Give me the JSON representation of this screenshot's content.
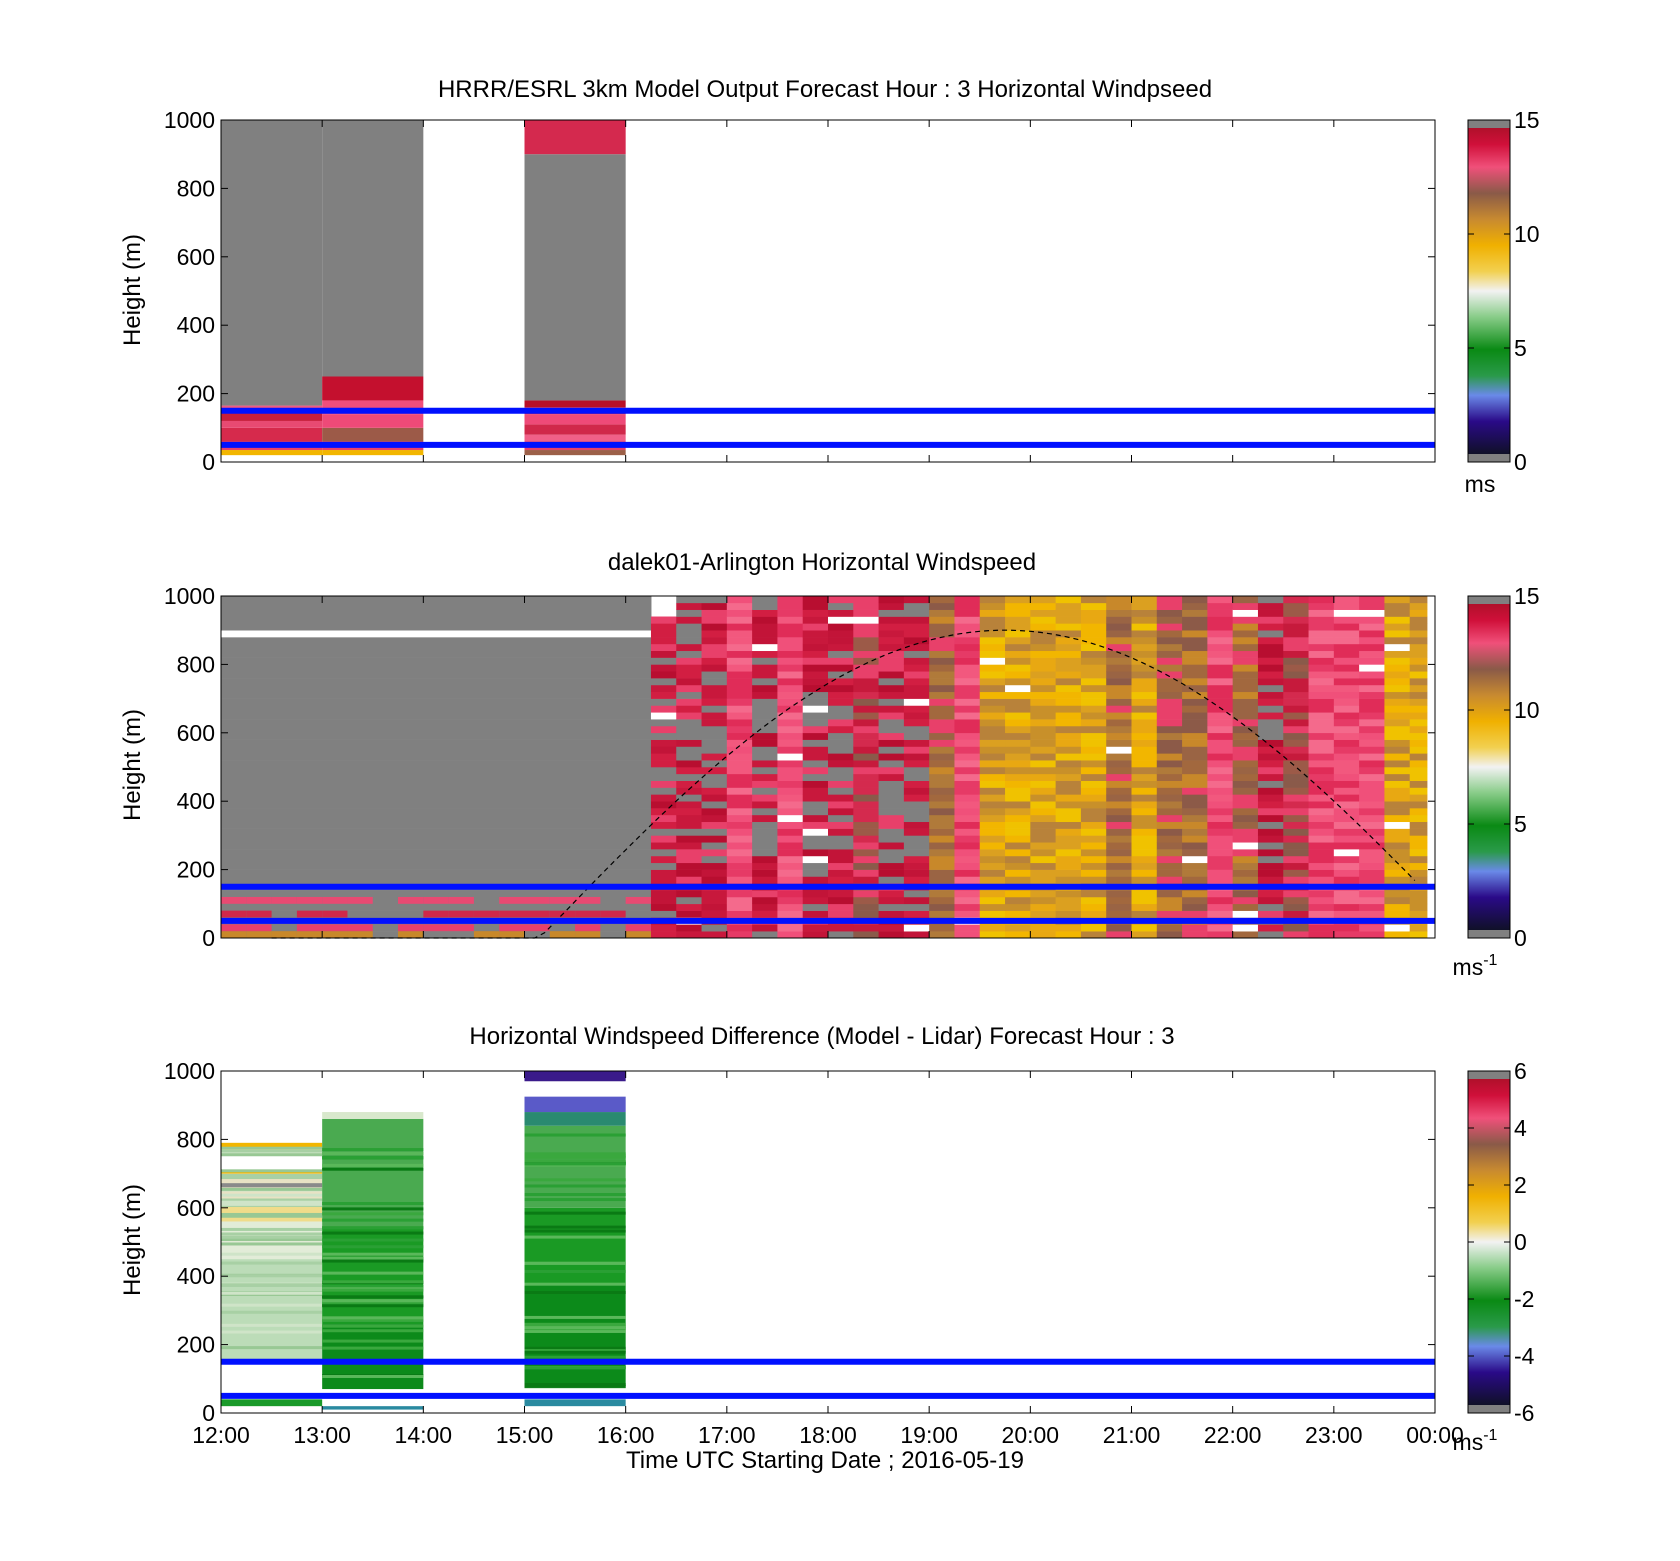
{
  "chart_data": [
    {
      "type": "heatmap",
      "title": "HRRR/ESRL 3km Model Output   Forecast Hour : 3 Horizontal Windpseed",
      "ylabel": "Height (m)",
      "xlim_hours": [
        12,
        24
      ],
      "ylim": [
        0,
        1000
      ],
      "yticks": [
        0,
        200,
        400,
        600,
        800,
        1000
      ],
      "colorbar": {
        "min": 0,
        "max": 15,
        "ticks": [
          0,
          5,
          10,
          15
        ],
        "unit": "ms",
        "unit_sup": ""
      },
      "reference_lines_m": [
        50,
        150
      ],
      "columns": [
        {
          "t0": 12,
          "t1": 13,
          "bands": [
            {
              "y0": 20,
              "y1": 35,
              "c": "#f2b600"
            },
            {
              "y0": 35,
              "y1": 60,
              "c": "#e8406a"
            },
            {
              "y0": 60,
              "y1": 100,
              "c": "#d62a4c"
            },
            {
              "y0": 100,
              "y1": 120,
              "c": "#e84a72"
            },
            {
              "y0": 120,
              "y1": 145,
              "c": "#c81e3c"
            },
            {
              "y0": 145,
              "y1": 165,
              "c": "#ee5a82"
            },
            {
              "y0": 165,
              "y1": 1000,
              "c": "#808080"
            }
          ]
        },
        {
          "t0": 13,
          "t1": 14,
          "bands": [
            {
              "y0": 20,
              "y1": 35,
              "c": "#f2b600"
            },
            {
              "y0": 35,
              "y1": 60,
              "c": "#e8406a"
            },
            {
              "y0": 60,
              "y1": 100,
              "c": "#9c5a48"
            },
            {
              "y0": 100,
              "y1": 140,
              "c": "#ee4a78"
            },
            {
              "y0": 140,
              "y1": 180,
              "c": "#f04e7c"
            },
            {
              "y0": 180,
              "y1": 250,
              "c": "#c4102e"
            },
            {
              "y0": 250,
              "y1": 1000,
              "c": "#808080"
            }
          ]
        },
        {
          "t0": 15,
          "t1": 16,
          "bands": [
            {
              "y0": 20,
              "y1": 35,
              "c": "#9c6048"
            },
            {
              "y0": 35,
              "y1": 60,
              "c": "#e8406a"
            },
            {
              "y0": 60,
              "y1": 80,
              "c": "#f06088"
            },
            {
              "y0": 80,
              "y1": 110,
              "c": "#d0284a"
            },
            {
              "y0": 110,
              "y1": 140,
              "c": "#ee4a78"
            },
            {
              "y0": 140,
              "y1": 160,
              "c": "#d62a4c"
            },
            {
              "y0": 160,
              "y1": 180,
              "c": "#b81028"
            },
            {
              "y0": 180,
              "y1": 900,
              "c": "#808080"
            },
            {
              "y0": 900,
              "y1": 1000,
              "c": "#d4294e"
            }
          ]
        }
      ]
    },
    {
      "type": "heatmap",
      "title": "dalek01-Arlington  Horizontal Windspeed",
      "ylabel": "Height (m)",
      "xlim_hours": [
        12,
        24
      ],
      "ylim": [
        0,
        1000
      ],
      "yticks": [
        0,
        200,
        400,
        600,
        800,
        1000
      ],
      "colorbar": {
        "min": 0,
        "max": 15,
        "ticks": [
          0,
          5,
          10,
          15
        ],
        "unit": "ms",
        "unit_sup": "-1"
      },
      "reference_lines_m": [
        50,
        150
      ],
      "dashed_curve_peak": {
        "hour": 19.75,
        "height_m": 900
      },
      "columns": [
        {
          "t0": 12.0,
          "t1": 16.25,
          "top": 1000,
          "palette": "gray"
        },
        {
          "t0": 16.25,
          "t1": 16.5,
          "top": 930,
          "palette": "red"
        },
        {
          "t0": 16.5,
          "t1": 16.75,
          "top": 1000,
          "palette": "red"
        },
        {
          "t0": 16.75,
          "t1": 17.0,
          "top": 1000,
          "palette": "red"
        },
        {
          "t0": 17.0,
          "t1": 17.25,
          "top": 1000,
          "palette": "pink"
        },
        {
          "t0": 17.25,
          "t1": 17.5,
          "top": 1000,
          "palette": "red"
        },
        {
          "t0": 17.5,
          "t1": 17.75,
          "top": 1000,
          "palette": "pink"
        },
        {
          "t0": 17.75,
          "t1": 18.0,
          "top": 1000,
          "palette": "red"
        },
        {
          "t0": 18.0,
          "t1": 18.25,
          "top": 1000,
          "palette": "red"
        },
        {
          "t0": 18.25,
          "t1": 18.5,
          "top": 1000,
          "palette": "mix"
        },
        {
          "t0": 18.5,
          "t1": 18.75,
          "top": 1000,
          "palette": "red"
        },
        {
          "t0": 18.75,
          "t1": 19.0,
          "top": 1000,
          "palette": "red"
        },
        {
          "t0": 19.0,
          "t1": 19.25,
          "top": 1000,
          "palette": "brown"
        },
        {
          "t0": 19.25,
          "t1": 19.5,
          "top": 1000,
          "palette": "pink"
        },
        {
          "t0": 19.5,
          "t1": 19.75,
          "top": 1000,
          "palette": "gold"
        },
        {
          "t0": 19.75,
          "t1": 20.0,
          "top": 1000,
          "palette": "gold"
        },
        {
          "t0": 20.0,
          "t1": 20.25,
          "top": 1000,
          "palette": "gold"
        },
        {
          "t0": 20.25,
          "t1": 20.5,
          "top": 1000,
          "palette": "gold"
        },
        {
          "t0": 20.5,
          "t1": 20.75,
          "top": 1000,
          "palette": "gold"
        },
        {
          "t0": 20.75,
          "t1": 21.0,
          "top": 1000,
          "palette": "brown"
        },
        {
          "t0": 21.0,
          "t1": 21.25,
          "top": 1000,
          "palette": "gold"
        },
        {
          "t0": 21.25,
          "t1": 21.5,
          "top": 1000,
          "palette": "brown"
        },
        {
          "t0": 21.5,
          "t1": 21.75,
          "top": 1000,
          "palette": "brown"
        },
        {
          "t0": 21.75,
          "t1": 22.0,
          "top": 1000,
          "palette": "pink"
        },
        {
          "t0": 22.0,
          "t1": 22.25,
          "top": 1000,
          "palette": "brown"
        },
        {
          "t0": 22.25,
          "t1": 22.5,
          "top": 1000,
          "palette": "red"
        },
        {
          "t0": 22.5,
          "t1": 22.75,
          "top": 1000,
          "palette": "mix"
        },
        {
          "t0": 22.75,
          "t1": 23.0,
          "top": 1000,
          "palette": "pink"
        },
        {
          "t0": 23.0,
          "t1": 23.25,
          "top": 1000,
          "palette": "pink"
        },
        {
          "t0": 23.25,
          "t1": 23.5,
          "top": 1000,
          "palette": "pink"
        },
        {
          "t0": 23.5,
          "t1": 23.75,
          "top": 1000,
          "palette": "gold"
        },
        {
          "t0": 23.75,
          "t1": 23.92,
          "top": 1000,
          "palette": "gold"
        }
      ],
      "palettes": {
        "gray": [
          "#808080"
        ],
        "red": [
          "#c21438",
          "#d21e42",
          "#b80e30",
          "#e8406a",
          "#808080",
          "#c8183c"
        ],
        "pink": [
          "#f0507a",
          "#e63a66",
          "#f46a8c",
          "#e02c58",
          "#f2587e"
        ],
        "mix": [
          "#9c5a48",
          "#c61a3c",
          "#e8406a",
          "#8a5a4a",
          "#d42a4e"
        ],
        "brown": [
          "#9a6444",
          "#b07a3a",
          "#8c5a48",
          "#c8882a",
          "#a2683e",
          "#e8406a"
        ],
        "gold": [
          "#f2b600",
          "#e8a812",
          "#dba020",
          "#f0c200",
          "#c8902a",
          "#b8823a"
        ]
      }
    },
    {
      "type": "heatmap",
      "title": "Horizontal Windspeed Difference (Model - Lidar) Forecast Hour : 3",
      "xlabel": "Time UTC  Starting Date ; 2016-05-19",
      "ylabel": "Height (m)",
      "xticks": [
        "12:00",
        "13:00",
        "14:00",
        "15:00",
        "16:00",
        "17:00",
        "18:00",
        "19:00",
        "20:00",
        "21:00",
        "22:00",
        "23:00",
        "00:00"
      ],
      "xlim_hours": [
        12,
        24
      ],
      "ylim": [
        0,
        1000
      ],
      "yticks": [
        0,
        200,
        400,
        600,
        800,
        1000
      ],
      "colorbar": {
        "min": -6,
        "max": 6,
        "ticks": [
          -6,
          -4,
          -2,
          0,
          2,
          4,
          6
        ],
        "unit": "ms",
        "unit_sup": "-1"
      },
      "reference_lines_m": [
        50,
        150
      ],
      "columns": [
        {
          "t0": 12,
          "t1": 13,
          "bands": [
            {
              "y0": 20,
              "y1": 40,
              "c": "#1a9a2a"
            },
            {
              "y0": 160,
              "y1": 450,
              "c": "#bcdcb8"
            },
            {
              "y0": 450,
              "y1": 560,
              "c": "#e2ecd8"
            },
            {
              "y0": 560,
              "y1": 620,
              "c": "#f0dc8a"
            },
            {
              "y0": 620,
              "y1": 700,
              "c": "#e8e2c4"
            },
            {
              "y0": 660,
              "y1": 672,
              "c": "#8a8a8a"
            },
            {
              "y0": 700,
              "y1": 712,
              "c": "#f2b600"
            },
            {
              "y0": 770,
              "y1": 790,
              "c": "#f2b600"
            }
          ]
        },
        {
          "t0": 13,
          "t1": 14,
          "bands": [
            {
              "y0": 10,
              "y1": 20,
              "c": "#2a8aa0"
            },
            {
              "y0": 70,
              "y1": 260,
              "c": "#0c8a1a"
            },
            {
              "y0": 260,
              "y1": 540,
              "c": "#1a9a24"
            },
            {
              "y0": 540,
              "y1": 860,
              "c": "#4aaa50"
            },
            {
              "y0": 860,
              "y1": 880,
              "c": "#d8e8cc"
            }
          ]
        },
        {
          "t0": 15,
          "t1": 16,
          "bands": [
            {
              "y0": 20,
              "y1": 40,
              "c": "#2a8aa0"
            },
            {
              "y0": 80,
              "y1": 380,
              "c": "#0c8a1a"
            },
            {
              "y0": 380,
              "y1": 600,
              "c": "#1a9a24"
            },
            {
              "y0": 600,
              "y1": 840,
              "c": "#4aaa50"
            },
            {
              "y0": 840,
              "y1": 880,
              "c": "#2a8a70"
            },
            {
              "y0": 880,
              "y1": 925,
              "c": "#5a5ac8"
            },
            {
              "y0": 970,
              "y1": 1000,
              "c": "#3a1a8a"
            }
          ]
        }
      ]
    }
  ]
}
